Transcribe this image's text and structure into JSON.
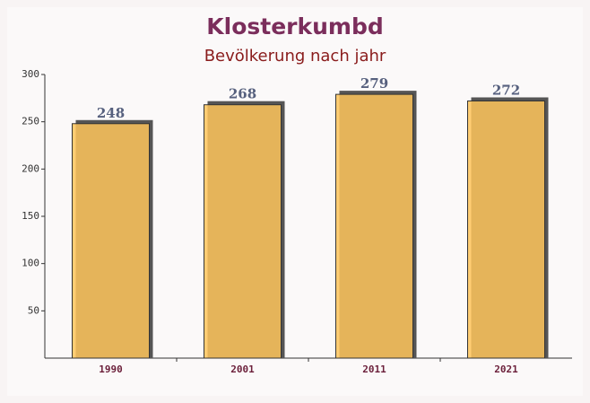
{
  "chart_data": {
    "type": "bar",
    "title": "Klosterkumbd",
    "subtitle": "Bevölkerung nach jahr",
    "categories": [
      "1990",
      "2001",
      "2011",
      "2021"
    ],
    "values": [
      248,
      268,
      279,
      272
    ],
    "color": "#ffc55c",
    "ylim": [
      0,
      300
    ],
    "yticks": [
      50,
      100,
      150,
      200,
      250,
      300
    ],
    "grid": false
  }
}
